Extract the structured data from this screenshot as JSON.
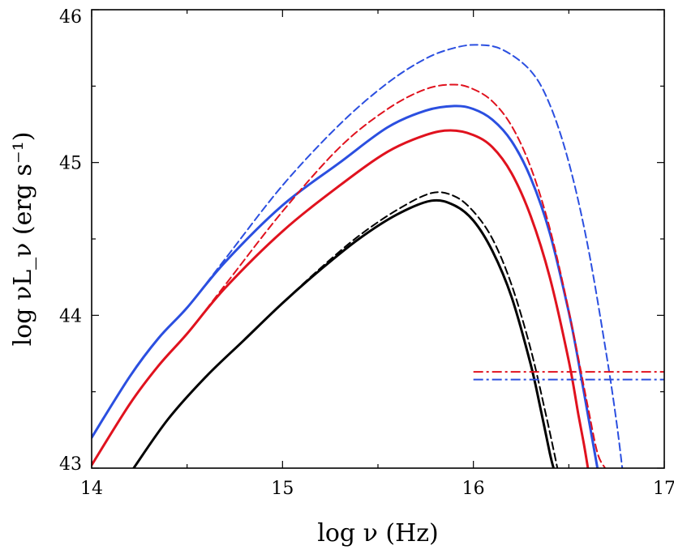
{
  "chart_data": {
    "type": "line",
    "title": "",
    "xlabel": "log ν (Hz)",
    "ylabel": "log νL_ν (erg s⁻¹)",
    "xlim": [
      14,
      17
    ],
    "ylim": [
      43,
      46
    ],
    "x_ticks": [
      14,
      15,
      16,
      17
    ],
    "y_ticks": [
      43,
      44,
      45,
      46
    ],
    "grid": false,
    "legend": "none",
    "series": [
      {
        "name": "blue-solid",
        "color": "#2b4fe0",
        "style": "solid",
        "x": [
          14.0,
          14.2,
          14.35,
          14.5,
          14.7,
          15.0,
          15.3,
          15.55,
          15.75,
          15.9,
          16.0,
          16.1,
          16.2,
          16.3,
          16.4,
          16.5,
          16.55,
          16.6,
          16.65
        ],
        "y": [
          43.2,
          43.6,
          43.85,
          44.05,
          44.35,
          44.72,
          45.0,
          45.23,
          45.34,
          45.37,
          45.35,
          45.28,
          45.14,
          44.9,
          44.54,
          44.02,
          43.7,
          43.35,
          43.0
        ]
      },
      {
        "name": "blue-dashed",
        "color": "#2b4fe0",
        "style": "dashed",
        "x": [
          14.0,
          14.2,
          14.35,
          14.5,
          14.7,
          15.0,
          15.3,
          15.55,
          15.75,
          15.9,
          16.02,
          16.15,
          16.3,
          16.4,
          16.5,
          16.6,
          16.7,
          16.75,
          16.78
        ],
        "y": [
          43.2,
          43.6,
          43.85,
          44.05,
          44.37,
          44.85,
          45.25,
          45.52,
          45.68,
          45.75,
          45.77,
          45.74,
          45.6,
          45.38,
          45.0,
          44.45,
          43.72,
          43.3,
          43.0
        ]
      },
      {
        "name": "red-solid",
        "color": "#e0121e",
        "style": "solid",
        "x": [
          14.0,
          14.2,
          14.35,
          14.5,
          14.7,
          15.0,
          15.3,
          15.55,
          15.75,
          15.88,
          16.0,
          16.1,
          16.2,
          16.3,
          16.4,
          16.5,
          16.55,
          16.58,
          16.6
        ],
        "y": [
          43.02,
          43.42,
          43.67,
          43.88,
          44.18,
          44.55,
          44.85,
          45.07,
          45.18,
          45.21,
          45.18,
          45.1,
          44.93,
          44.65,
          44.25,
          43.7,
          43.35,
          43.15,
          43.0
        ]
      },
      {
        "name": "red-dashed",
        "color": "#e0121e",
        "style": "dashed",
        "x": [
          14.0,
          14.2,
          14.35,
          14.5,
          14.7,
          15.0,
          15.3,
          15.55,
          15.75,
          15.9,
          16.0,
          16.1,
          16.2,
          16.3,
          16.4,
          16.5,
          16.6,
          16.65,
          16.69
        ],
        "y": [
          43.02,
          43.42,
          43.67,
          43.88,
          44.2,
          44.68,
          45.1,
          45.35,
          45.48,
          45.51,
          45.48,
          45.4,
          45.24,
          44.97,
          44.57,
          44.03,
          43.4,
          43.1,
          43.0
        ]
      },
      {
        "name": "black-solid",
        "color": "#000000",
        "style": "solid",
        "x": [
          14.22,
          14.4,
          14.6,
          14.8,
          15.0,
          15.2,
          15.4,
          15.6,
          15.78,
          15.9,
          16.0,
          16.1,
          16.2,
          16.3,
          16.35,
          16.4,
          16.42
        ],
        "y": [
          43.0,
          43.32,
          43.6,
          43.84,
          44.08,
          44.3,
          44.5,
          44.66,
          44.75,
          44.72,
          44.62,
          44.42,
          44.12,
          43.68,
          43.4,
          43.1,
          43.0
        ]
      },
      {
        "name": "black-dashed",
        "color": "#000000",
        "style": "dashed",
        "x": [
          14.22,
          14.4,
          14.6,
          14.8,
          15.0,
          15.2,
          15.4,
          15.6,
          15.78,
          15.9,
          16.0,
          16.1,
          16.2,
          16.3,
          16.38,
          16.42,
          16.44
        ],
        "y": [
          43.0,
          43.32,
          43.6,
          43.84,
          44.08,
          44.31,
          44.52,
          44.69,
          44.8,
          44.78,
          44.68,
          44.5,
          44.2,
          43.78,
          43.35,
          43.12,
          43.0
        ]
      }
    ],
    "horizontal_lines": [
      {
        "name": "red-dashdot",
        "color": "#e0121e",
        "y": 43.63,
        "x_start": 16.0,
        "x_end": 17.0
      },
      {
        "name": "blue-dashdot",
        "color": "#2b4fe0",
        "y": 43.58,
        "x_start": 16.0,
        "x_end": 17.0
      }
    ]
  }
}
